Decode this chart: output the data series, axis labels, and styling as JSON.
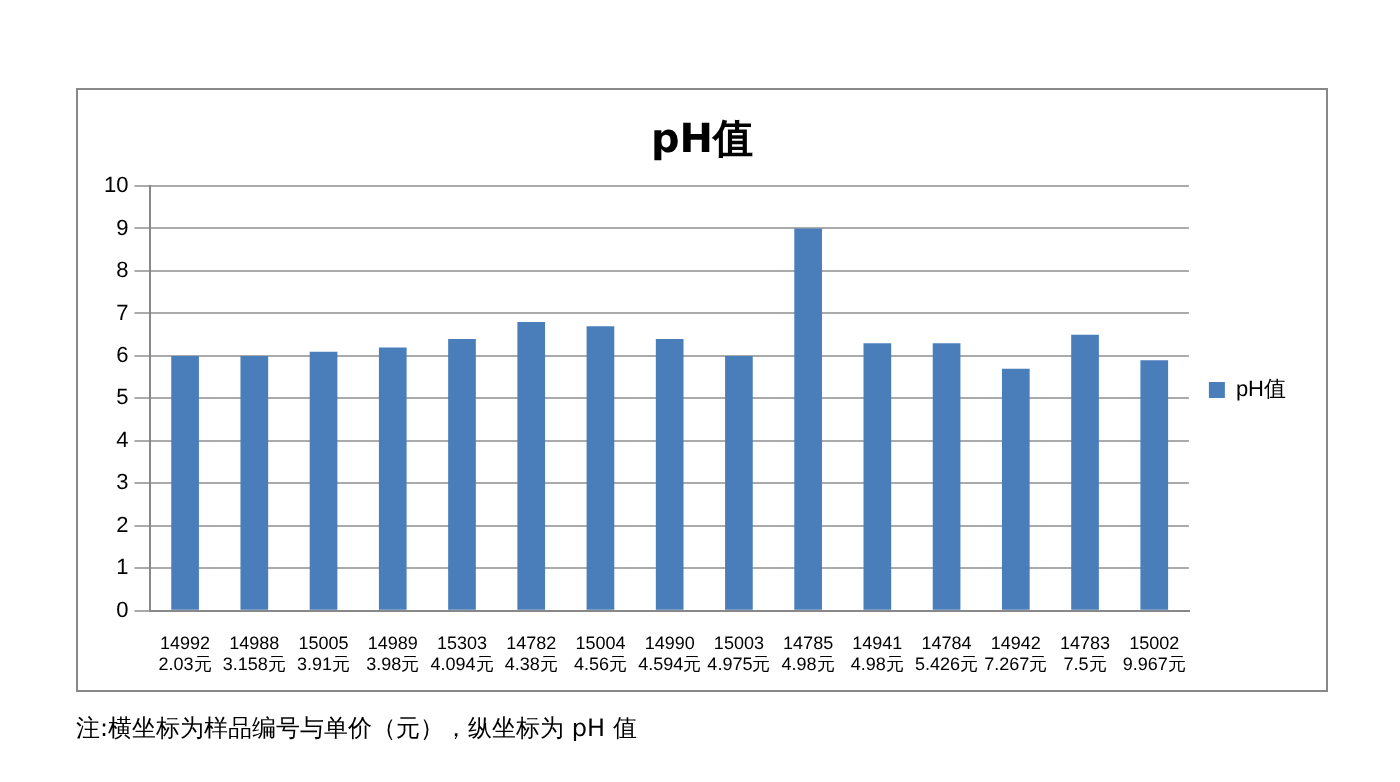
{
  "chart_data": {
    "type": "bar",
    "title": "pH值",
    "categories": [
      "14992\n2.03元",
      "14988\n3.158元",
      "15005\n3.91元",
      "14989\n3.98元",
      "15303\n4.094元",
      "14782\n4.38元",
      "15004\n4.56元",
      "14990\n4.594元",
      "15003\n4.975元",
      "14785\n4.98元",
      "14941\n4.98元",
      "14784\n5.426元",
      "14942\n7.267元",
      "14783\n7.5元",
      "15002\n9.967元"
    ],
    "series": [
      {
        "name": "pH值",
        "color": "#4a7ebb",
        "values": [
          6.0,
          6.0,
          6.1,
          6.2,
          6.4,
          6.8,
          6.7,
          6.4,
          6.0,
          9.0,
          6.3,
          6.3,
          5.7,
          6.5,
          5.9
        ]
      }
    ],
    "ylim": [
      0,
      10
    ],
    "yticks": [
      0,
      1,
      2,
      3,
      4,
      5,
      6,
      7,
      8,
      9,
      10
    ],
    "grid": "y",
    "legend": "right",
    "annotations": [
      "注:横坐标为样品编号与单价（元），纵坐标为 pH 值"
    ]
  }
}
